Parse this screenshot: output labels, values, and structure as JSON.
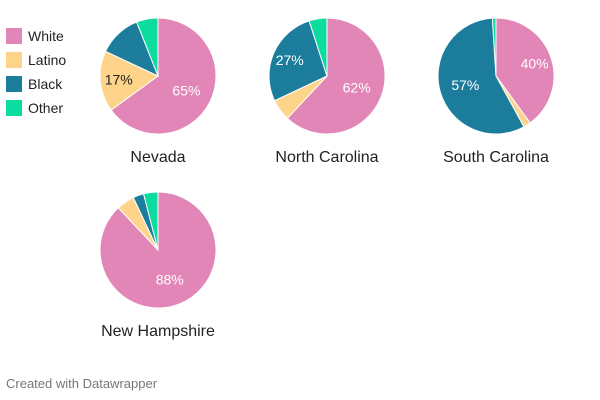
{
  "colors": {
    "White": "#e186b6",
    "Latino": "#fdd48a",
    "Black": "#1b7c9c",
    "Other": "#0ddca0"
  },
  "legend": {
    "items": [
      {
        "label": "White",
        "color": "#e186b6"
      },
      {
        "label": "Latino",
        "color": "#fdd48a"
      },
      {
        "label": "Black",
        "color": "#1b7c9c"
      },
      {
        "label": "Other",
        "color": "#0ddca0"
      }
    ]
  },
  "footer": {
    "credit": "Created with Datawrapper"
  },
  "chart_data": [
    {
      "type": "pie",
      "title": "Nevada",
      "categories": [
        "White",
        "Latino",
        "Black",
        "Other"
      ],
      "values": [
        65,
        17,
        12,
        6
      ],
      "data_labels": [
        "65%",
        "17%",
        "",
        ""
      ]
    },
    {
      "type": "pie",
      "title": "North Carolina",
      "categories": [
        "White",
        "Latino",
        "Black",
        "Other"
      ],
      "values": [
        62,
        6,
        27,
        5
      ],
      "data_labels": [
        "62%",
        "",
        "27%",
        ""
      ]
    },
    {
      "type": "pie",
      "title": "South Carolina",
      "categories": [
        "White",
        "Latino",
        "Black",
        "Other"
      ],
      "values": [
        40,
        2,
        57,
        1
      ],
      "data_labels": [
        "40%",
        "",
        "57%",
        ""
      ]
    },
    {
      "type": "pie",
      "title": "New Hampshire",
      "categories": [
        "White",
        "Latino",
        "Black",
        "Other"
      ],
      "values": [
        88,
        5,
        3,
        4
      ],
      "data_labels": [
        "88%",
        "",
        "",
        ""
      ]
    }
  ]
}
